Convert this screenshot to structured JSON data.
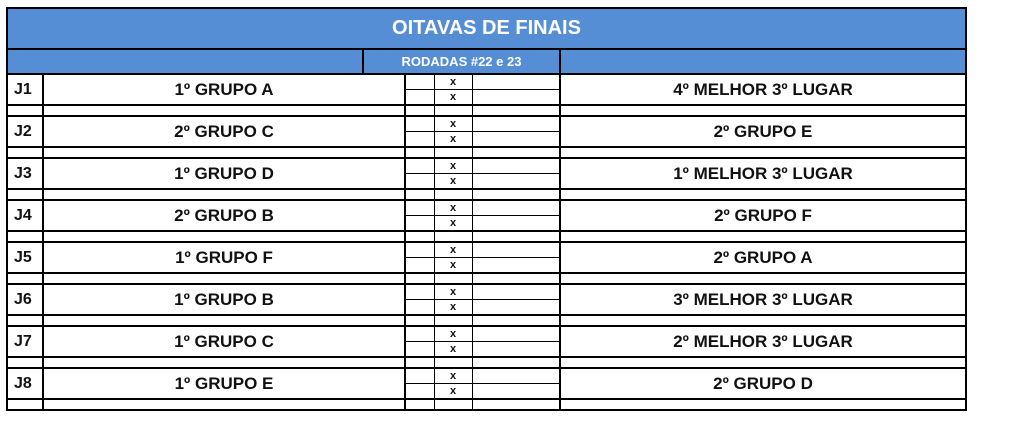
{
  "title": "OITAVAS DE FINAIS",
  "subtitle": "RODADAS #22 e 23",
  "score_placeholder": "x",
  "colors": {
    "header_bg": "#558ed5",
    "header_text": "#ffffff"
  },
  "games": [
    {
      "id": "J1",
      "home": "1º GRUPO A",
      "away": "4º MELHOR 3º LUGAR"
    },
    {
      "id": "J2",
      "home": "2º GRUPO C",
      "away": "2º GRUPO E"
    },
    {
      "id": "J3",
      "home": "1º GRUPO D",
      "away": "1º MELHOR 3º LUGAR"
    },
    {
      "id": "J4",
      "home": "2º GRUPO B",
      "away": "2º GRUPO F"
    },
    {
      "id": "J5",
      "home": "1º GRUPO F",
      "away": "2º GRUPO A"
    },
    {
      "id": "J6",
      "home": "1º GRUPO B",
      "away": "3º MELHOR 3º LUGAR"
    },
    {
      "id": "J7",
      "home": "1º GRUPO C",
      "away": "2º MELHOR 3º LUGAR"
    },
    {
      "id": "J8",
      "home": "1º GRUPO E",
      "away": "2º GRUPO D"
    }
  ]
}
